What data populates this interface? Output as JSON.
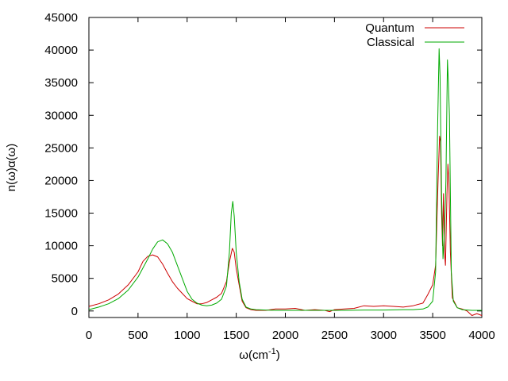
{
  "chart_data": {
    "type": "line",
    "title": "",
    "xlabel": "ω(cm",
    "xlabel_sup": "-1",
    "xlabel_close": ")",
    "ylabel": "n(ω)α(ω)",
    "xlim": [
      0,
      4000
    ],
    "ylim": [
      -1000,
      45000
    ],
    "x_ticks": [
      0,
      500,
      1000,
      1500,
      2000,
      2500,
      3000,
      3500,
      4000
    ],
    "y_ticks": [
      0,
      5000,
      10000,
      15000,
      20000,
      25000,
      30000,
      35000,
      40000,
      45000
    ],
    "x_tick_labels": [
      "0",
      "500",
      "1000",
      "1500",
      "2000",
      "2500",
      "3000",
      "3500",
      "4000"
    ],
    "y_tick_labels": [
      "0",
      "5000",
      "10000",
      "15000",
      "20000",
      "25000",
      "30000",
      "35000",
      "40000",
      "45000"
    ],
    "grid": false,
    "legend_position": "top-right",
    "series": [
      {
        "name": "Quantum",
        "color": "#cc0000",
        "points": [
          [
            0,
            700
          ],
          [
            100,
            1100
          ],
          [
            200,
            1700
          ],
          [
            300,
            2600
          ],
          [
            400,
            4000
          ],
          [
            500,
            6000
          ],
          [
            550,
            7600
          ],
          [
            600,
            8400
          ],
          [
            650,
            8600
          ],
          [
            700,
            8300
          ],
          [
            750,
            7200
          ],
          [
            800,
            5800
          ],
          [
            850,
            4500
          ],
          [
            900,
            3500
          ],
          [
            950,
            2700
          ],
          [
            1000,
            1900
          ],
          [
            1050,
            1500
          ],
          [
            1100,
            1100
          ],
          [
            1150,
            1100
          ],
          [
            1200,
            1300
          ],
          [
            1250,
            1700
          ],
          [
            1300,
            2100
          ],
          [
            1350,
            2700
          ],
          [
            1400,
            4500
          ],
          [
            1430,
            7500
          ],
          [
            1460,
            9600
          ],
          [
            1480,
            9000
          ],
          [
            1500,
            6500
          ],
          [
            1530,
            4000
          ],
          [
            1560,
            1500
          ],
          [
            1600,
            500
          ],
          [
            1650,
            200
          ],
          [
            1700,
            100
          ],
          [
            1800,
            100
          ],
          [
            1900,
            300
          ],
          [
            2000,
            300
          ],
          [
            2100,
            400
          ],
          [
            2200,
            100
          ],
          [
            2300,
            200
          ],
          [
            2400,
            100
          ],
          [
            2450,
            -100
          ],
          [
            2500,
            200
          ],
          [
            2600,
            300
          ],
          [
            2700,
            400
          ],
          [
            2800,
            800
          ],
          [
            2900,
            700
          ],
          [
            3000,
            800
          ],
          [
            3100,
            700
          ],
          [
            3200,
            600
          ],
          [
            3300,
            800
          ],
          [
            3400,
            1200
          ],
          [
            3450,
            2500
          ],
          [
            3500,
            4000
          ],
          [
            3530,
            7000
          ],
          [
            3555,
            20000
          ],
          [
            3570,
            26800
          ],
          [
            3580,
            26000
          ],
          [
            3590,
            15000
          ],
          [
            3600,
            10000
          ],
          [
            3610,
            18000
          ],
          [
            3620,
            9000
          ],
          [
            3630,
            7000
          ],
          [
            3645,
            18000
          ],
          [
            3655,
            22500
          ],
          [
            3665,
            20000
          ],
          [
            3680,
            9000
          ],
          [
            3700,
            2000
          ],
          [
            3750,
            500
          ],
          [
            3800,
            300
          ],
          [
            3850,
            0
          ],
          [
            3900,
            -700
          ],
          [
            3950,
            -400
          ],
          [
            4000,
            -700
          ]
        ]
      },
      {
        "name": "Classical",
        "color": "#00aa00",
        "points": [
          [
            0,
            200
          ],
          [
            100,
            600
          ],
          [
            200,
            1100
          ],
          [
            300,
            1900
          ],
          [
            400,
            3200
          ],
          [
            500,
            5200
          ],
          [
            600,
            8000
          ],
          [
            650,
            9500
          ],
          [
            700,
            10600
          ],
          [
            750,
            10900
          ],
          [
            800,
            10300
          ],
          [
            850,
            9000
          ],
          [
            900,
            7000
          ],
          [
            950,
            5000
          ],
          [
            1000,
            3000
          ],
          [
            1050,
            1800
          ],
          [
            1100,
            1200
          ],
          [
            1150,
            900
          ],
          [
            1200,
            800
          ],
          [
            1250,
            900
          ],
          [
            1300,
            1200
          ],
          [
            1350,
            1800
          ],
          [
            1400,
            3800
          ],
          [
            1430,
            9000
          ],
          [
            1450,
            15000
          ],
          [
            1465,
            16800
          ],
          [
            1480,
            14500
          ],
          [
            1500,
            9000
          ],
          [
            1530,
            4500
          ],
          [
            1560,
            1800
          ],
          [
            1600,
            600
          ],
          [
            1650,
            300
          ],
          [
            1700,
            200
          ],
          [
            1800,
            150
          ],
          [
            1900,
            100
          ],
          [
            2000,
            100
          ],
          [
            2200,
            100
          ],
          [
            2400,
            100
          ],
          [
            2600,
            100
          ],
          [
            2800,
            150
          ],
          [
            3000,
            150
          ],
          [
            3200,
            200
          ],
          [
            3300,
            200
          ],
          [
            3400,
            300
          ],
          [
            3450,
            600
          ],
          [
            3500,
            1500
          ],
          [
            3530,
            6000
          ],
          [
            3550,
            28000
          ],
          [
            3565,
            40200
          ],
          [
            3575,
            36000
          ],
          [
            3590,
            18000
          ],
          [
            3605,
            8000
          ],
          [
            3620,
            12000
          ],
          [
            3635,
            20000
          ],
          [
            3650,
            38500
          ],
          [
            3660,
            35000
          ],
          [
            3670,
            30000
          ],
          [
            3690,
            6000
          ],
          [
            3710,
            1500
          ],
          [
            3750,
            500
          ],
          [
            3800,
            200
          ],
          [
            3900,
            100
          ],
          [
            4000,
            100
          ]
        ]
      }
    ]
  }
}
